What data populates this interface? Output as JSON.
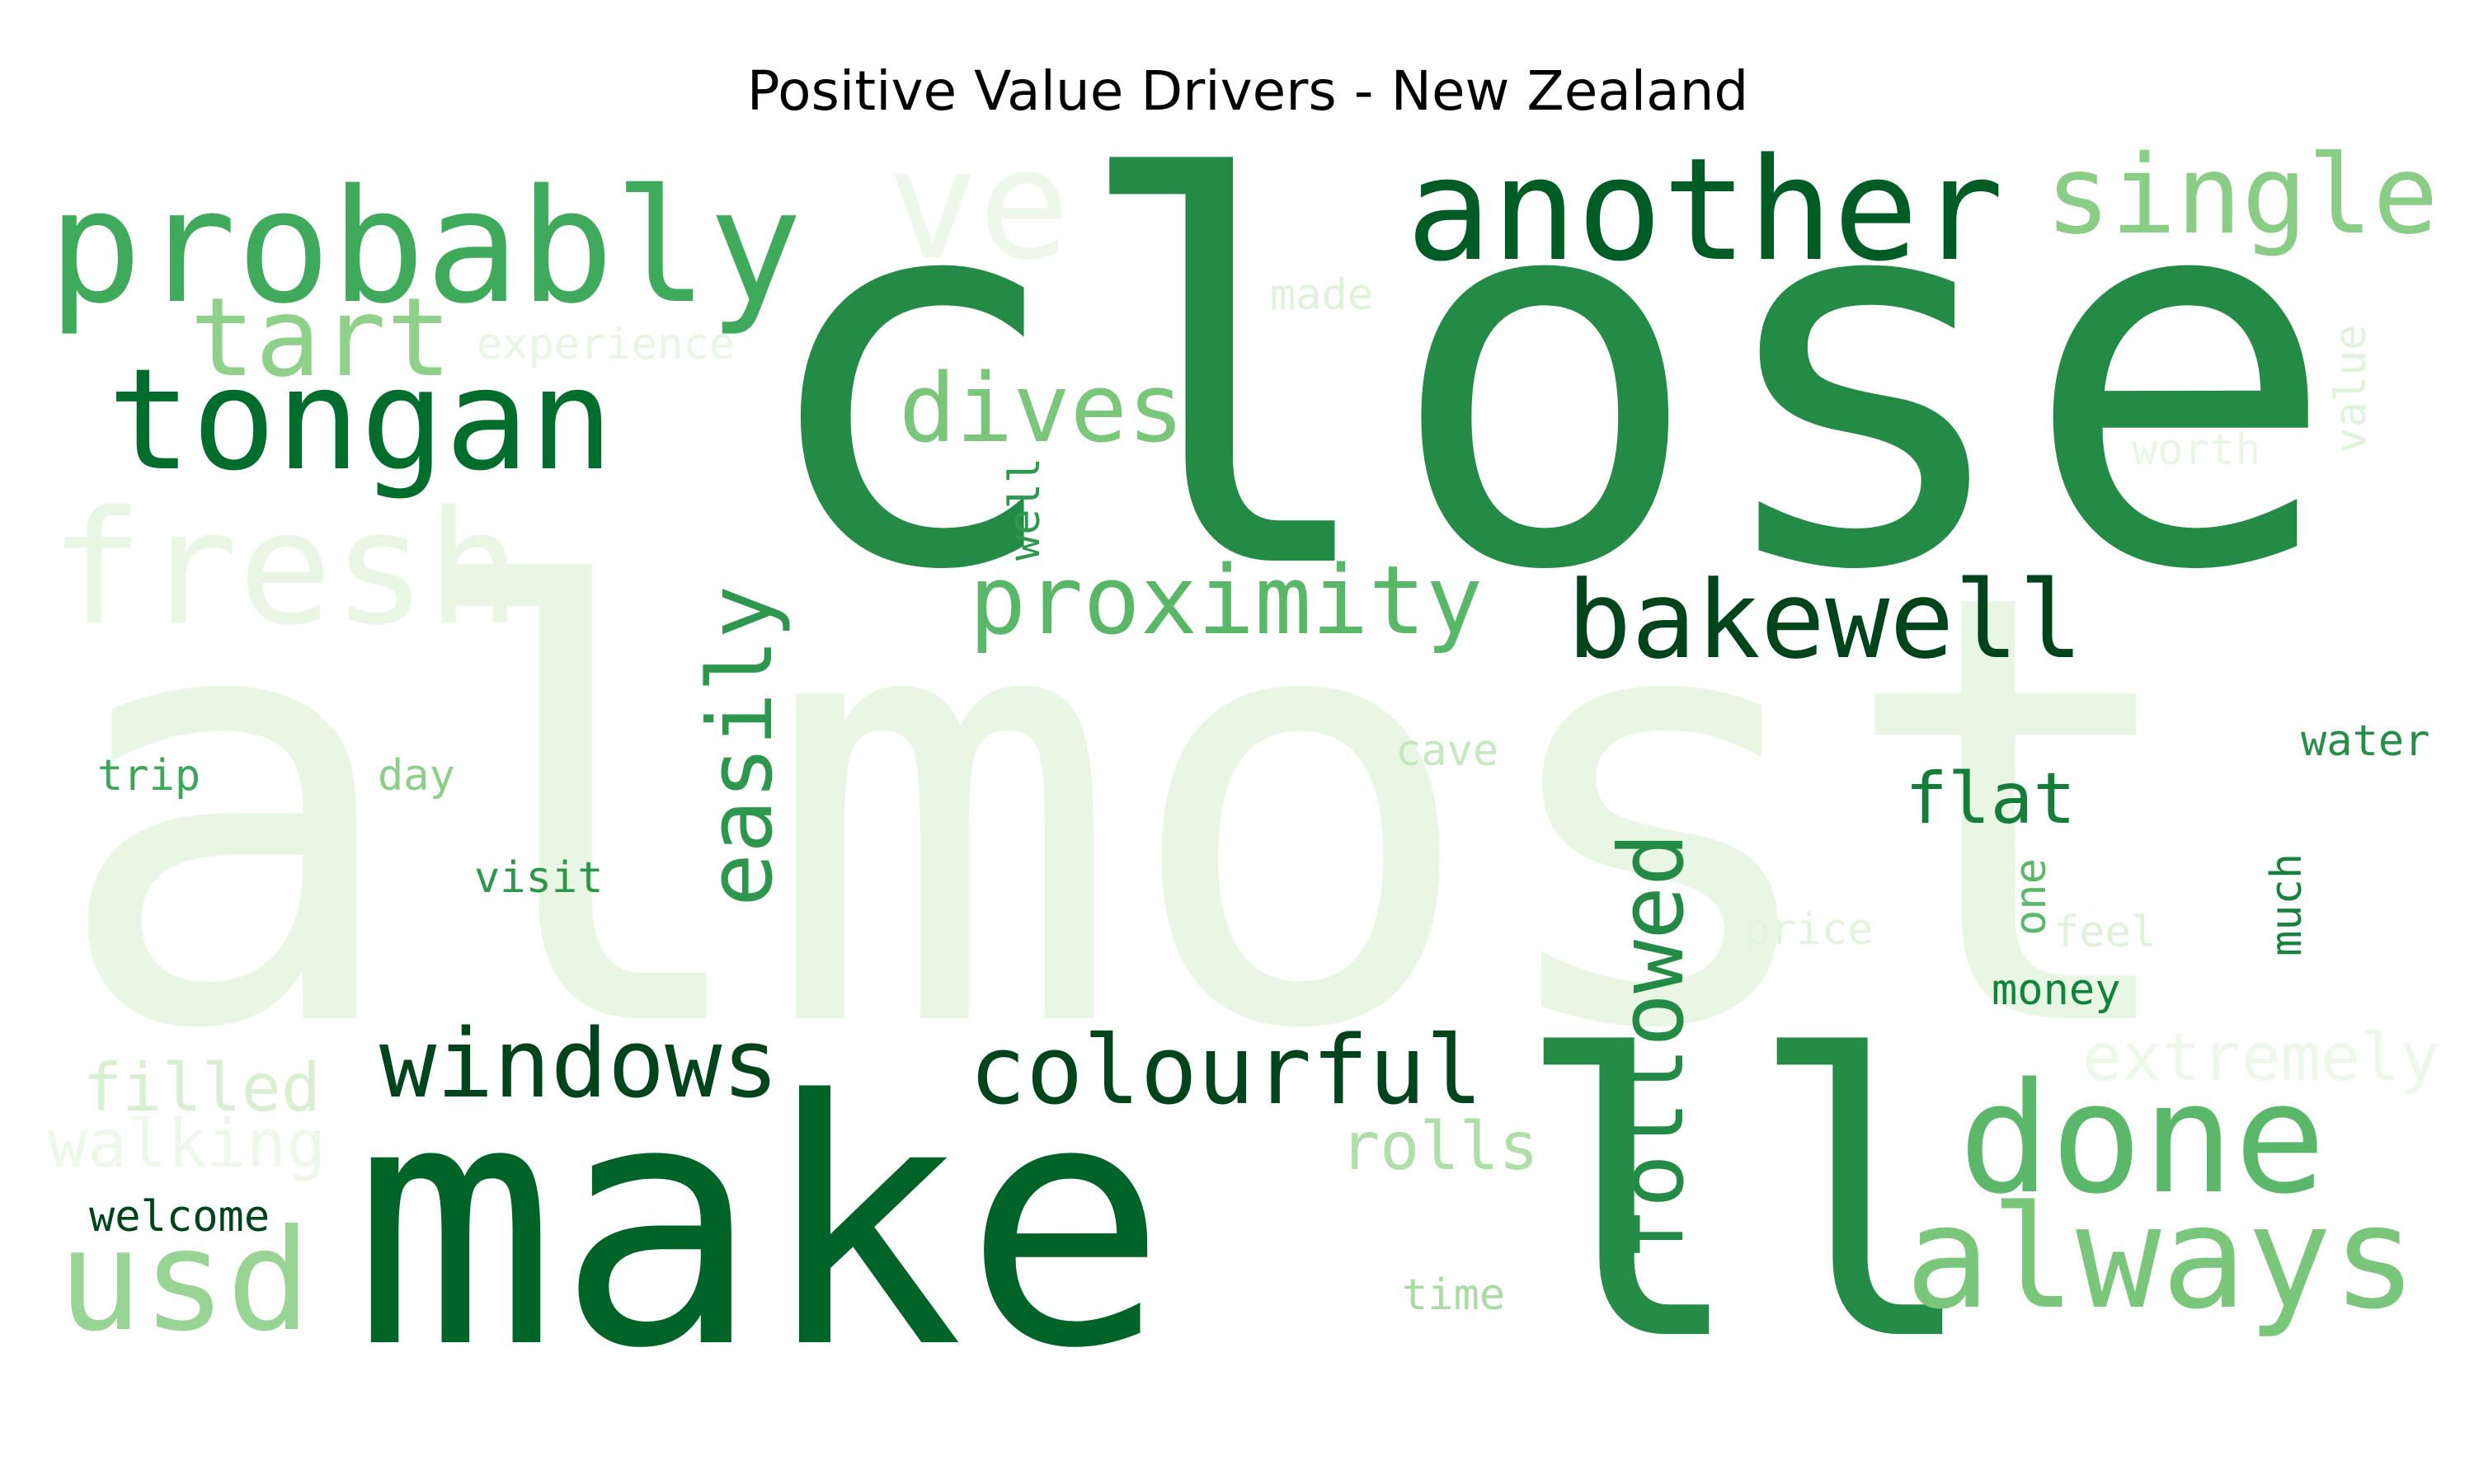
{
  "chart_data": {
    "type": "wordcloud",
    "title": "Positive Value Drivers - New Zealand",
    "colormap": "Greens",
    "words": [
      {
        "text": "almost",
        "color": "#e8f6e3"
      },
      {
        "text": "close",
        "color": "#238b45"
      },
      {
        "text": "make",
        "color": "#006428"
      },
      {
        "text": "ll",
        "color": "#248c46"
      },
      {
        "text": "probably",
        "color": "#3fa95c"
      },
      {
        "text": "ve",
        "color": "#eef8ea"
      },
      {
        "text": "another",
        "color": "#005c25"
      },
      {
        "text": "single",
        "color": "#89cd86"
      },
      {
        "text": "tongan",
        "color": "#006d2c"
      },
      {
        "text": "tart",
        "color": "#8fd18a"
      },
      {
        "text": "fresh",
        "color": "#e8f6e3"
      },
      {
        "text": "experience",
        "color": "#e9f6e4"
      },
      {
        "text": "made",
        "color": "#dff3da"
      },
      {
        "text": "dives",
        "color": "#7ac77b"
      },
      {
        "text": "well",
        "color": "#2f984f"
      },
      {
        "text": "proximity",
        "color": "#58b867"
      },
      {
        "text": "bakewell",
        "color": "#00441b"
      },
      {
        "text": "easily",
        "color": "#2e974e"
      },
      {
        "text": "value",
        "color": "#dff3da"
      },
      {
        "text": "worth",
        "color": "#e9f6e4"
      },
      {
        "text": "trip",
        "color": "#3da65a"
      },
      {
        "text": "day",
        "color": "#8ccf88"
      },
      {
        "text": "cave",
        "color": "#c6e8bf"
      },
      {
        "text": "water",
        "color": "#268f47"
      },
      {
        "text": "flat",
        "color": "#137d39"
      },
      {
        "text": "visit",
        "color": "#2d964d"
      },
      {
        "text": "followed",
        "color": "#238b45"
      },
      {
        "text": "one",
        "color": "#5bb86a"
      },
      {
        "text": "price",
        "color": "#e2f4dd"
      },
      {
        "text": "feel",
        "color": "#dff3da"
      },
      {
        "text": "much",
        "color": "#17813d"
      },
      {
        "text": "money",
        "color": "#10843c"
      },
      {
        "text": "extremely",
        "color": "#eef8ea"
      },
      {
        "text": "filled",
        "color": "#d8f0d1"
      },
      {
        "text": "windows",
        "color": "#00441b"
      },
      {
        "text": "colourful",
        "color": "#00441b"
      },
      {
        "text": "done",
        "color": "#5bb86a"
      },
      {
        "text": "walking",
        "color": "#eef8ea"
      },
      {
        "text": "rolls",
        "color": "#b0dea8"
      },
      {
        "text": "welcome",
        "color": "#00441b"
      },
      {
        "text": "usd",
        "color": "#98d594"
      },
      {
        "text": "always",
        "color": "#7ac77b"
      },
      {
        "text": "time",
        "color": "#a9dba3"
      }
    ]
  }
}
